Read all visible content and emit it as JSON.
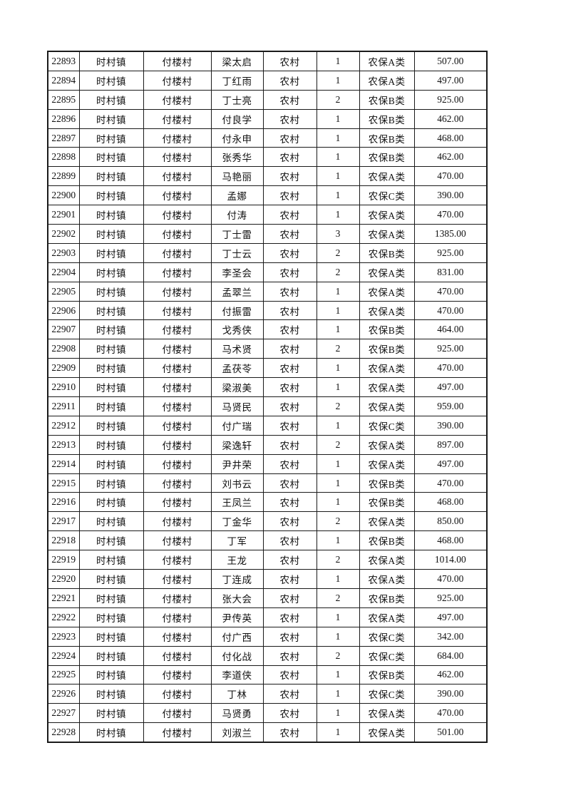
{
  "page": {
    "background": "#ffffff",
    "border_color": "#1a1a1a",
    "text_color": "#111111"
  },
  "table": {
    "columns": [
      "id",
      "town",
      "village",
      "person-name",
      "area-type",
      "count",
      "insurance-class",
      "amount"
    ],
    "rows": [
      [
        "22893",
        "时村镇",
        "付楼村",
        "梁太启",
        "农村",
        "1",
        "农保A类",
        "507.00"
      ],
      [
        "22894",
        "时村镇",
        "付楼村",
        "丁红雨",
        "农村",
        "1",
        "农保A类",
        "497.00"
      ],
      [
        "22895",
        "时村镇",
        "付楼村",
        "丁士亮",
        "农村",
        "2",
        "农保B类",
        "925.00"
      ],
      [
        "22896",
        "时村镇",
        "付楼村",
        "付良学",
        "农村",
        "1",
        "农保B类",
        "462.00"
      ],
      [
        "22897",
        "时村镇",
        "付楼村",
        "付永申",
        "农村",
        "1",
        "农保B类",
        "468.00"
      ],
      [
        "22898",
        "时村镇",
        "付楼村",
        "张秀华",
        "农村",
        "1",
        "农保B类",
        "462.00"
      ],
      [
        "22899",
        "时村镇",
        "付楼村",
        "马艳丽",
        "农村",
        "1",
        "农保A类",
        "470.00"
      ],
      [
        "22900",
        "时村镇",
        "付楼村",
        "孟娜",
        "农村",
        "1",
        "农保C类",
        "390.00"
      ],
      [
        "22901",
        "时村镇",
        "付楼村",
        "付涛",
        "农村",
        "1",
        "农保A类",
        "470.00"
      ],
      [
        "22902",
        "时村镇",
        "付楼村",
        "丁士雷",
        "农村",
        "3",
        "农保A类",
        "1385.00"
      ],
      [
        "22903",
        "时村镇",
        "付楼村",
        "丁士云",
        "农村",
        "2",
        "农保B类",
        "925.00"
      ],
      [
        "22904",
        "时村镇",
        "付楼村",
        "李圣会",
        "农村",
        "2",
        "农保A类",
        "831.00"
      ],
      [
        "22905",
        "时村镇",
        "付楼村",
        "孟翠兰",
        "农村",
        "1",
        "农保A类",
        "470.00"
      ],
      [
        "22906",
        "时村镇",
        "付楼村",
        "付振雷",
        "农村",
        "1",
        "农保A类",
        "470.00"
      ],
      [
        "22907",
        "时村镇",
        "付楼村",
        "戈秀侠",
        "农村",
        "1",
        "农保B类",
        "464.00"
      ],
      [
        "22908",
        "时村镇",
        "付楼村",
        "马术贤",
        "农村",
        "2",
        "农保B类",
        "925.00"
      ],
      [
        "22909",
        "时村镇",
        "付楼村",
        "孟茯苓",
        "农村",
        "1",
        "农保A类",
        "470.00"
      ],
      [
        "22910",
        "时村镇",
        "付楼村",
        "梁淑美",
        "农村",
        "1",
        "农保A类",
        "497.00"
      ],
      [
        "22911",
        "时村镇",
        "付楼村",
        "马贤民",
        "农村",
        "2",
        "农保A类",
        "959.00"
      ],
      [
        "22912",
        "时村镇",
        "付楼村",
        "付广瑞",
        "农村",
        "1",
        "农保C类",
        "390.00"
      ],
      [
        "22913",
        "时村镇",
        "付楼村",
        "梁逸轩",
        "农村",
        "2",
        "农保A类",
        "897.00"
      ],
      [
        "22914",
        "时村镇",
        "付楼村",
        "尹井荣",
        "农村",
        "1",
        "农保A类",
        "497.00"
      ],
      [
        "22915",
        "时村镇",
        "付楼村",
        "刘书云",
        "农村",
        "1",
        "农保B类",
        "470.00"
      ],
      [
        "22916",
        "时村镇",
        "付楼村",
        "王凤兰",
        "农村",
        "1",
        "农保B类",
        "468.00"
      ],
      [
        "22917",
        "时村镇",
        "付楼村",
        "丁金华",
        "农村",
        "2",
        "农保A类",
        "850.00"
      ],
      [
        "22918",
        "时村镇",
        "付楼村",
        "丁军",
        "农村",
        "1",
        "农保B类",
        "468.00"
      ],
      [
        "22919",
        "时村镇",
        "付楼村",
        "王龙",
        "农村",
        "2",
        "农保A类",
        "1014.00"
      ],
      [
        "22920",
        "时村镇",
        "付楼村",
        "丁连成",
        "农村",
        "1",
        "农保A类",
        "470.00"
      ],
      [
        "22921",
        "时村镇",
        "付楼村",
        "张大会",
        "农村",
        "2",
        "农保B类",
        "925.00"
      ],
      [
        "22922",
        "时村镇",
        "付楼村",
        "尹传英",
        "农村",
        "1",
        "农保A类",
        "497.00"
      ],
      [
        "22923",
        "时村镇",
        "付楼村",
        "付广西",
        "农村",
        "1",
        "农保C类",
        "342.00"
      ],
      [
        "22924",
        "时村镇",
        "付楼村",
        "付化战",
        "农村",
        "2",
        "农保C类",
        "684.00"
      ],
      [
        "22925",
        "时村镇",
        "付楼村",
        "李道侠",
        "农村",
        "1",
        "农保B类",
        "462.00"
      ],
      [
        "22926",
        "时村镇",
        "付楼村",
        "丁林",
        "农村",
        "1",
        "农保C类",
        "390.00"
      ],
      [
        "22927",
        "时村镇",
        "付楼村",
        "马贤勇",
        "农村",
        "1",
        "农保A类",
        "470.00"
      ],
      [
        "22928",
        "时村镇",
        "付楼村",
        "刘淑兰",
        "农村",
        "1",
        "农保A类",
        "501.00"
      ]
    ]
  }
}
